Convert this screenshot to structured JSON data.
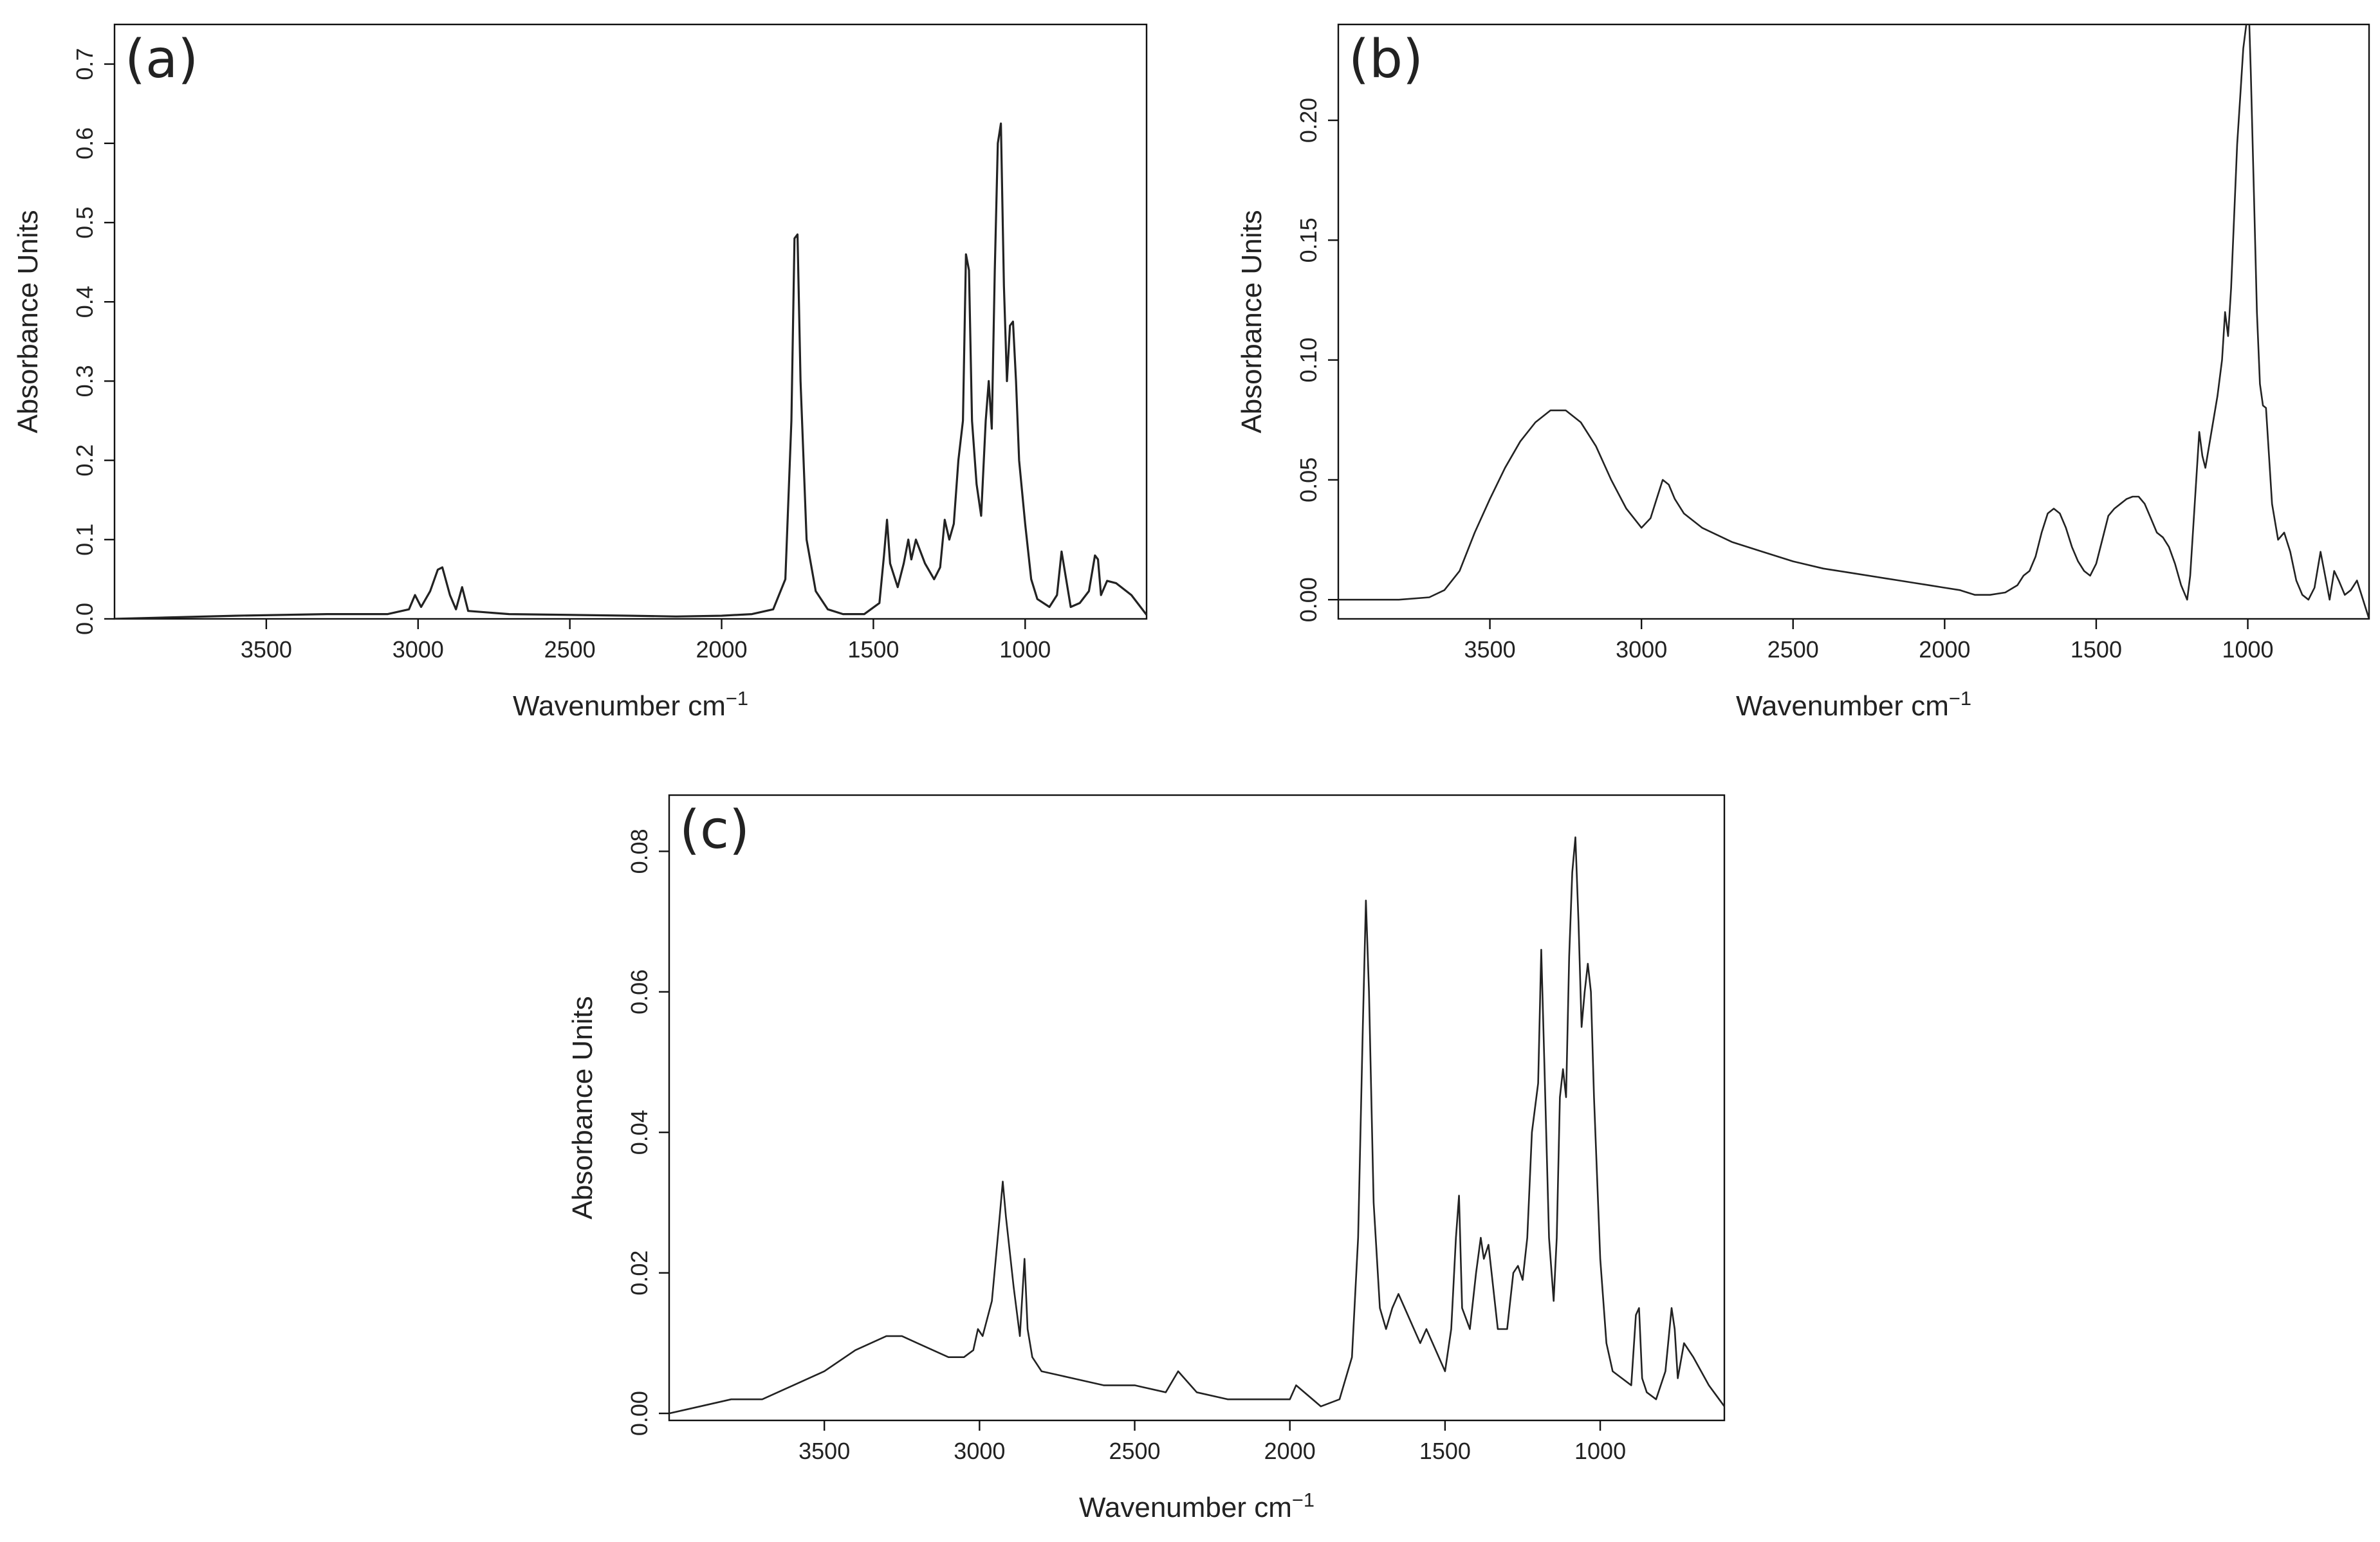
{
  "chart_data": [
    {
      "type": "line",
      "panel_label": "(a)",
      "xlabel": "Wavenumber cm",
      "xlabel_sup": "−1",
      "ylabel": "Absorbance Units",
      "x_reversed": true,
      "xlim": [
        4000,
        600
      ],
      "ylim": [
        0,
        0.75
      ],
      "x_ticks": [
        3500,
        3000,
        2500,
        2000,
        1500,
        1000
      ],
      "y_ticks": [
        0.0,
        0.1,
        0.2,
        0.3,
        0.4,
        0.5,
        0.6,
        0.7
      ],
      "y_tick_labels": [
        "0.0",
        "0.1",
        "0.2",
        "0.3",
        "0.4",
        "0.5",
        "0.6",
        "0.7"
      ],
      "color": "#222222",
      "series": [
        {
          "x": [
            4000,
            3600,
            3300,
            3100,
            3030,
            3010,
            2990,
            2960,
            2935,
            2920,
            2895,
            2875,
            2855,
            2835,
            2700,
            2300,
            2150,
            2000,
            1900,
            1830,
            1790,
            1770,
            1760,
            1750,
            1740,
            1720,
            1690,
            1650,
            1600,
            1530,
            1480,
            1465,
            1455,
            1445,
            1420,
            1400,
            1385,
            1375,
            1360,
            1330,
            1300,
            1280,
            1265,
            1250,
            1235,
            1220,
            1205,
            1195,
            1185,
            1175,
            1160,
            1145,
            1130,
            1120,
            1110,
            1100,
            1090,
            1080,
            1070,
            1060,
            1050,
            1040,
            1030,
            1020,
            1000,
            980,
            960,
            920,
            895,
            880,
            865,
            850,
            820,
            790,
            770,
            760,
            750,
            730,
            700,
            650,
            600
          ],
          "y": [
            0.0,
            0.004,
            0.006,
            0.006,
            0.012,
            0.03,
            0.015,
            0.035,
            0.062,
            0.065,
            0.03,
            0.012,
            0.04,
            0.01,
            0.006,
            0.004,
            0.003,
            0.004,
            0.006,
            0.012,
            0.05,
            0.25,
            0.48,
            0.485,
            0.3,
            0.1,
            0.035,
            0.012,
            0.006,
            0.006,
            0.02,
            0.08,
            0.125,
            0.07,
            0.04,
            0.07,
            0.1,
            0.075,
            0.1,
            0.07,
            0.05,
            0.065,
            0.125,
            0.1,
            0.12,
            0.2,
            0.25,
            0.46,
            0.44,
            0.25,
            0.17,
            0.13,
            0.25,
            0.3,
            0.24,
            0.44,
            0.6,
            0.625,
            0.42,
            0.3,
            0.37,
            0.375,
            0.3,
            0.2,
            0.12,
            0.05,
            0.025,
            0.015,
            0.03,
            0.085,
            0.05,
            0.015,
            0.02,
            0.035,
            0.08,
            0.075,
            0.03,
            0.048,
            0.045,
            0.03,
            0.005
          ]
        }
      ]
    },
    {
      "type": "line",
      "panel_label": "(b)",
      "xlabel": "Wavenumber cm",
      "xlabel_sup": "−1",
      "ylabel": "Absorbance Units",
      "x_reversed": true,
      "xlim": [
        4000,
        600
      ],
      "ylim": [
        -0.008,
        0.24
      ],
      "x_ticks": [
        3500,
        3000,
        2500,
        2000,
        1500,
        1000
      ],
      "y_ticks": [
        0.0,
        0.05,
        0.1,
        0.15,
        0.2
      ],
      "y_tick_labels": [
        "0.00",
        "0.05",
        "0.10",
        "0.15",
        "0.20"
      ],
      "color": "#222222",
      "series": [
        {
          "x": [
            4000,
            3800,
            3700,
            3650,
            3600,
            3550,
            3500,
            3450,
            3400,
            3350,
            3300,
            3250,
            3200,
            3150,
            3100,
            3050,
            3000,
            2970,
            2950,
            2930,
            2910,
            2890,
            2860,
            2800,
            2700,
            2600,
            2500,
            2400,
            2300,
            2200,
            2150,
            2100,
            2050,
            2000,
            1950,
            1900,
            1850,
            1800,
            1760,
            1740,
            1720,
            1700,
            1680,
            1660,
            1640,
            1620,
            1600,
            1580,
            1560,
            1540,
            1520,
            1500,
            1480,
            1460,
            1440,
            1420,
            1400,
            1380,
            1360,
            1340,
            1320,
            1300,
            1280,
            1260,
            1240,
            1220,
            1200,
            1190,
            1180,
            1170,
            1160,
            1150,
            1140,
            1120,
            1100,
            1085,
            1075,
            1065,
            1060,
            1055,
            1045,
            1035,
            1025,
            1015,
            1005,
            1000,
            995,
            990,
            980,
            970,
            960,
            950,
            940,
            930,
            920,
            900,
            880,
            860,
            840,
            820,
            800,
            780,
            760,
            745,
            730,
            715,
            700,
            680,
            660,
            640,
            620,
            600
          ],
          "y": [
            0.0,
            0.0,
            0.001,
            0.004,
            0.012,
            0.028,
            0.042,
            0.055,
            0.066,
            0.074,
            0.079,
            0.079,
            0.074,
            0.064,
            0.05,
            0.038,
            0.03,
            0.034,
            0.042,
            0.05,
            0.048,
            0.042,
            0.036,
            0.03,
            0.024,
            0.02,
            0.016,
            0.013,
            0.011,
            0.009,
            0.008,
            0.007,
            0.006,
            0.005,
            0.004,
            0.002,
            0.002,
            0.003,
            0.006,
            0.01,
            0.012,
            0.018,
            0.028,
            0.036,
            0.038,
            0.036,
            0.03,
            0.022,
            0.016,
            0.012,
            0.01,
            0.015,
            0.025,
            0.035,
            0.038,
            0.04,
            0.042,
            0.043,
            0.043,
            0.04,
            0.034,
            0.028,
            0.026,
            0.022,
            0.015,
            0.006,
            0.0,
            0.01,
            0.03,
            0.05,
            0.07,
            0.06,
            0.055,
            0.07,
            0.085,
            0.1,
            0.12,
            0.11,
            0.12,
            0.13,
            0.16,
            0.19,
            0.21,
            0.23,
            0.24,
            0.245,
            0.24,
            0.22,
            0.17,
            0.12,
            0.09,
            0.081,
            0.08,
            0.06,
            0.04,
            0.025,
            0.028,
            0.02,
            0.008,
            0.002,
            0.0,
            0.005,
            0.02,
            0.01,
            0.0,
            0.012,
            0.008,
            0.002,
            0.004,
            0.008,
            0.0,
            -0.008
          ]
        }
      ]
    },
    {
      "type": "line",
      "panel_label": "(c)",
      "xlabel": "Wavenumber cm",
      "xlabel_sup": "−1",
      "ylabel": "Absorbance Units",
      "x_reversed": true,
      "xlim": [
        4000,
        600
      ],
      "ylim": [
        -0.001,
        0.088
      ],
      "x_ticks": [
        3500,
        3000,
        2500,
        2000,
        1500,
        1000
      ],
      "y_ticks": [
        0.0,
        0.02,
        0.04,
        0.06,
        0.08
      ],
      "y_tick_labels": [
        "0.00",
        "0.02",
        "0.04",
        "0.06",
        "0.08"
      ],
      "color": "#222222",
      "series": [
        {
          "x": [
            4000,
            3900,
            3800,
            3700,
            3600,
            3500,
            3400,
            3300,
            3250,
            3200,
            3100,
            3050,
            3020,
            3005,
            2990,
            2960,
            2935,
            2925,
            2915,
            2890,
            2870,
            2855,
            2845,
            2830,
            2800,
            2700,
            2600,
            2500,
            2400,
            2360,
            2340,
            2300,
            2200,
            2100,
            2000,
            1980,
            1900,
            1840,
            1800,
            1780,
            1765,
            1755,
            1745,
            1730,
            1710,
            1690,
            1670,
            1650,
            1630,
            1600,
            1580,
            1560,
            1540,
            1500,
            1480,
            1465,
            1455,
            1445,
            1420,
            1400,
            1385,
            1375,
            1360,
            1330,
            1300,
            1280,
            1265,
            1250,
            1235,
            1220,
            1200,
            1190,
            1180,
            1165,
            1150,
            1140,
            1130,
            1120,
            1110,
            1100,
            1090,
            1080,
            1070,
            1060,
            1050,
            1040,
            1030,
            1020,
            1000,
            980,
            960,
            930,
            900,
            885,
            875,
            865,
            850,
            820,
            790,
            770,
            760,
            750,
            730,
            700,
            650,
            600
          ],
          "y": [
            0.0,
            0.001,
            0.002,
            0.002,
            0.004,
            0.006,
            0.009,
            0.011,
            0.011,
            0.01,
            0.008,
            0.008,
            0.009,
            0.012,
            0.011,
            0.016,
            0.028,
            0.033,
            0.028,
            0.018,
            0.011,
            0.022,
            0.012,
            0.008,
            0.006,
            0.005,
            0.004,
            0.004,
            0.003,
            0.006,
            0.005,
            0.003,
            0.002,
            0.002,
            0.002,
            0.004,
            0.001,
            0.002,
            0.008,
            0.025,
            0.055,
            0.073,
            0.06,
            0.03,
            0.015,
            0.012,
            0.015,
            0.017,
            0.015,
            0.012,
            0.01,
            0.012,
            0.01,
            0.006,
            0.012,
            0.025,
            0.031,
            0.015,
            0.012,
            0.02,
            0.025,
            0.022,
            0.024,
            0.012,
            0.012,
            0.02,
            0.021,
            0.019,
            0.025,
            0.04,
            0.047,
            0.066,
            0.05,
            0.025,
            0.016,
            0.025,
            0.045,
            0.049,
            0.045,
            0.065,
            0.077,
            0.082,
            0.07,
            0.055,
            0.06,
            0.064,
            0.06,
            0.045,
            0.022,
            0.01,
            0.006,
            0.005,
            0.004,
            0.014,
            0.015,
            0.005,
            0.003,
            0.002,
            0.006,
            0.015,
            0.012,
            0.005,
            0.01,
            0.008,
            0.004,
            0.001
          ]
        }
      ]
    }
  ]
}
